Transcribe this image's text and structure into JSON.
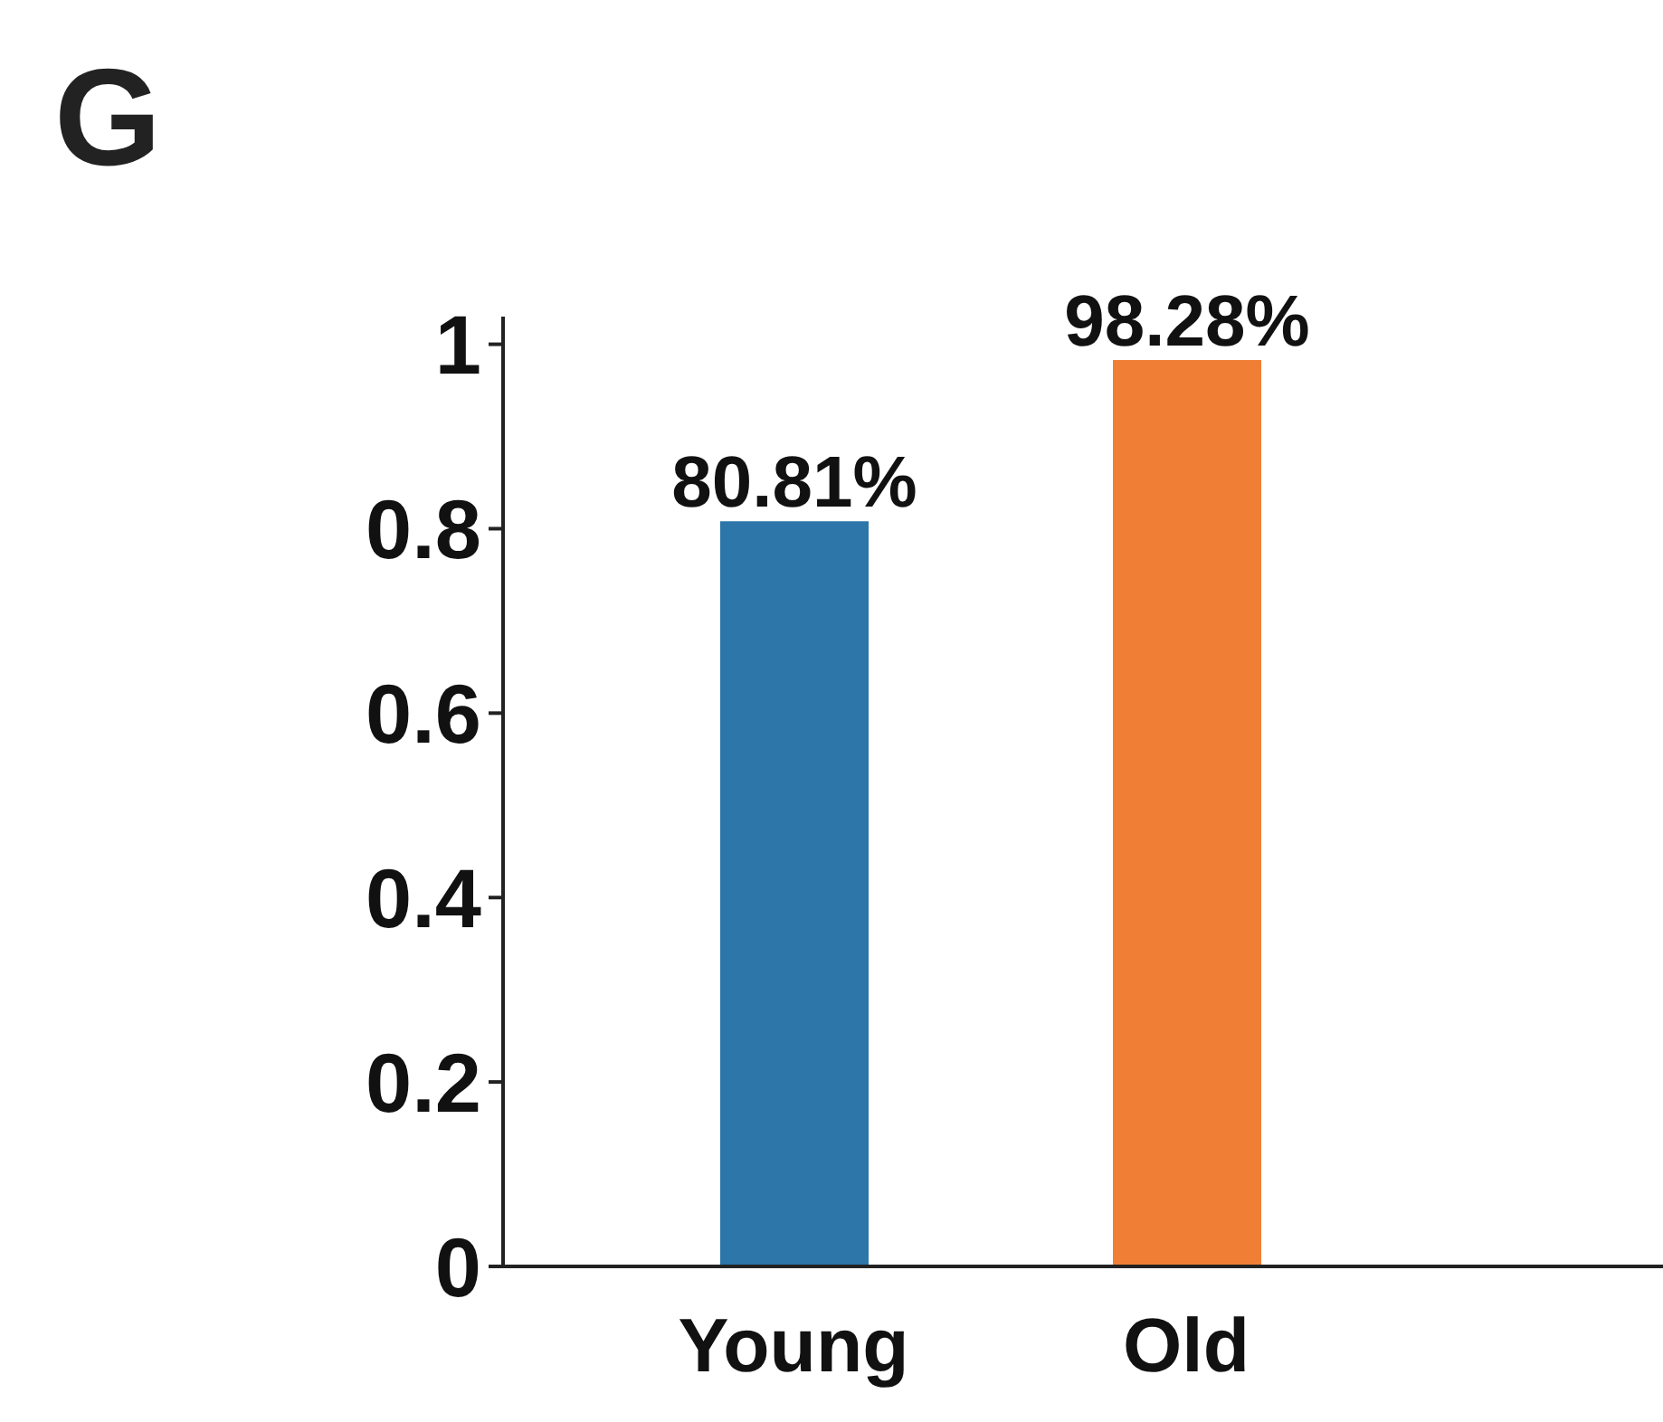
{
  "chart_data": {
    "type": "bar",
    "title": "G",
    "categories": [
      "Young",
      "Old"
    ],
    "values": [
      0.8081,
      0.9828
    ],
    "value_labels": [
      "80.81%",
      "98.28%"
    ],
    "colors": [
      "#2c76a9",
      "#f07f35"
    ],
    "ylim": [
      0,
      1.03
    ],
    "yticks": [
      0,
      0.2,
      0.4,
      0.6,
      0.8,
      1
    ],
    "grid": false
  }
}
